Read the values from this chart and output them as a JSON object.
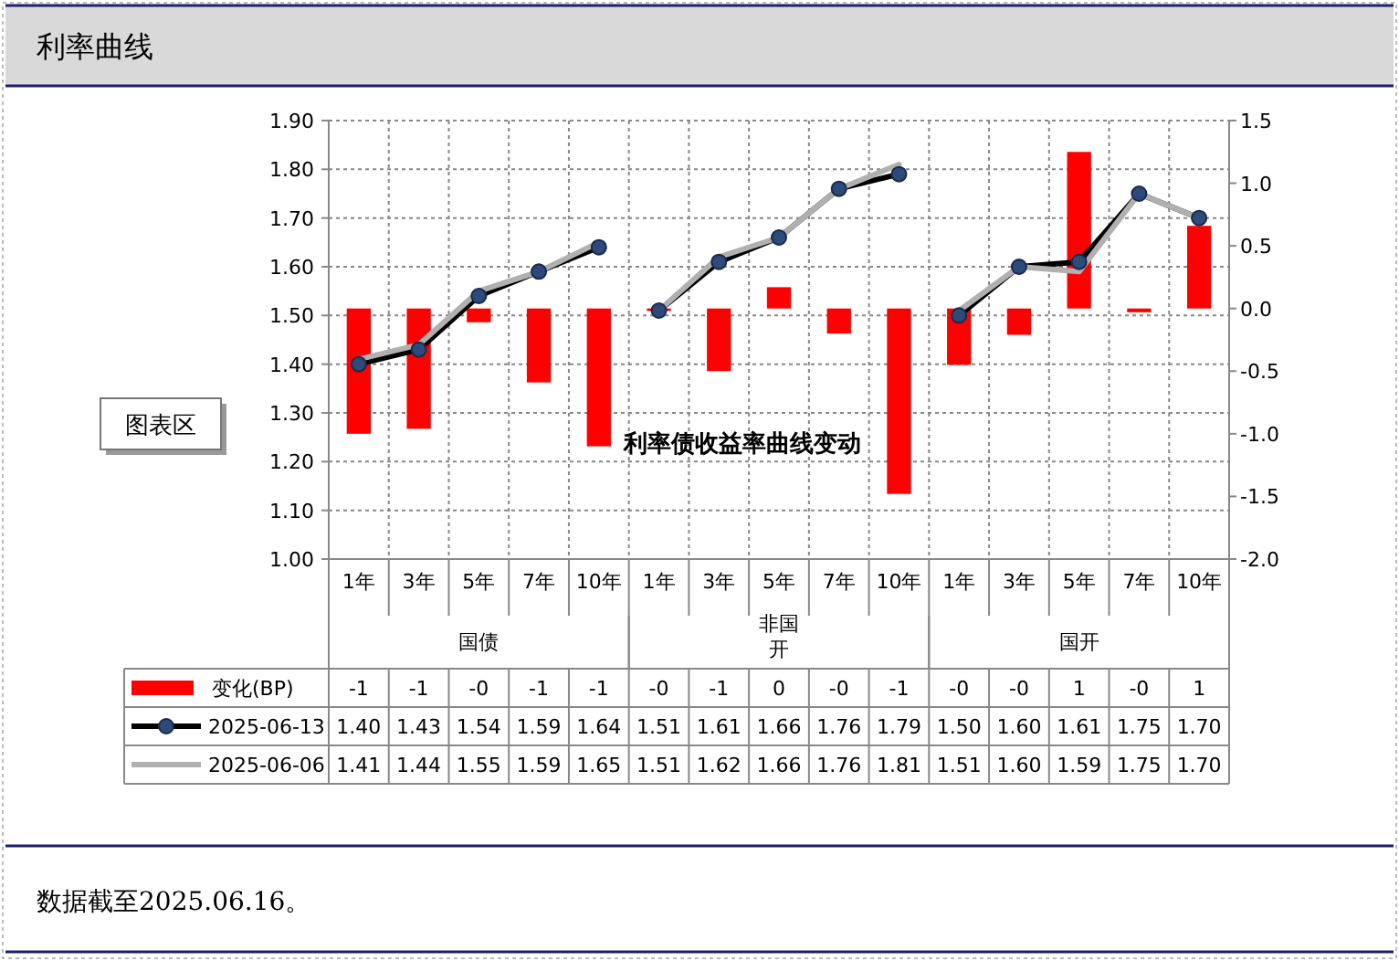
{
  "chart_data": {
    "type": "bar",
    "title": "利率曲线",
    "subtitle": "利率债收益率曲线变动",
    "categories": [
      "1年",
      "3年",
      "5年",
      "7年",
      "10年",
      "1年",
      "3年",
      "5年",
      "7年",
      "10年",
      "1年",
      "3年",
      "5年",
      "7年",
      "10年"
    ],
    "series": [
      {
        "name": "变化(BP)",
        "axis": "y2",
        "color": "#ff0000",
        "values": [
          -1.0,
          -0.96,
          -0.11,
          -0.59,
          -1.1,
          -0.02,
          -0.5,
          0.17,
          -0.2,
          -1.48,
          -0.45,
          -0.21,
          1.25,
          -0.03,
          0.66
        ],
        "value_labels": [
          "-1",
          "-1",
          "-0",
          "-1",
          "-1",
          "-0",
          "-1",
          "0",
          "-0",
          "-1",
          "-0",
          "-0",
          "1",
          "-0",
          "1"
        ]
      },
      {
        "name": "2025-06-13",
        "type": "line",
        "color": "#000000",
        "marker": "circle",
        "values": [
          1.4,
          1.43,
          1.54,
          1.59,
          1.64,
          1.51,
          1.61,
          1.66,
          1.76,
          1.79,
          1.5,
          1.6,
          1.61,
          1.75,
          1.7
        ],
        "value_labels": [
          "1.40",
          "1.43",
          "1.54",
          "1.59",
          "1.64",
          "1.51",
          "1.61",
          "1.66",
          "1.76",
          "1.79",
          "1.50",
          "1.60",
          "1.61",
          "1.75",
          "1.70"
        ]
      },
      {
        "name": "2025-06-06",
        "type": "line",
        "color": "#b0b0b0",
        "marker": "none",
        "values": [
          1.41,
          1.44,
          1.55,
          1.59,
          1.65,
          1.51,
          1.62,
          1.66,
          1.76,
          1.81,
          1.51,
          1.6,
          1.59,
          1.75,
          1.7
        ],
        "value_labels": [
          "1.41",
          "1.44",
          "1.55",
          "1.59",
          "1.65",
          "1.51",
          "1.62",
          "1.66",
          "1.76",
          "1.81",
          "1.51",
          "1.60",
          "1.59",
          "1.75",
          "1.70"
        ]
      }
    ],
    "ylim": [
      1.0,
      1.9
    ],
    "yticks": [
      {
        "value": 1.0,
        "label": "1.00"
      },
      {
        "value": 1.1,
        "label": "1.10"
      },
      {
        "value": 1.2,
        "label": "1.20"
      },
      {
        "value": 1.3,
        "label": "1.30"
      },
      {
        "value": 1.4,
        "label": "1.40"
      },
      {
        "value": 1.5,
        "label": "1.50"
      },
      {
        "value": 1.6,
        "label": "1.60"
      },
      {
        "value": 1.7,
        "label": "1.70"
      },
      {
        "value": 1.8,
        "label": "1.80"
      },
      {
        "value": 1.9,
        "label": "1.90"
      }
    ],
    "y2lim": [
      -2.0,
      1.5
    ],
    "y2ticks": [
      {
        "value": -2.0,
        "label": "-2.0"
      },
      {
        "value": -1.5,
        "label": "-1.5"
      },
      {
        "value": -1.0,
        "label": "-1.0"
      },
      {
        "value": -0.5,
        "label": "-0.5"
      },
      {
        "value": 0,
        "label": "0.0"
      },
      {
        "value": 0.5,
        "label": "0.5"
      },
      {
        "value": 1.0,
        "label": "1.0"
      },
      {
        "value": 1.5,
        "label": "1.5"
      }
    ],
    "grid": true,
    "legend": "bottom",
    "line_style": "solid",
    "annotations": [
      "国债",
      "非国开",
      "国开",
      "图表区",
      "数据截至2025.06.16。"
    ]
  }
}
